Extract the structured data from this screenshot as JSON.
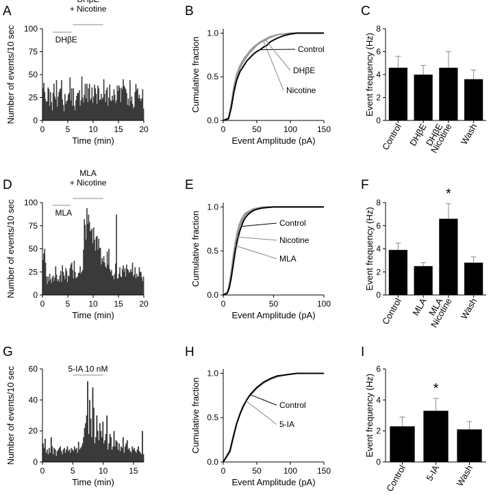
{
  "colors": {
    "hist_fill": "#3a3a3a",
    "bar_fill": "#000000",
    "curve_dark": "#000000",
    "curve_light": "#999999",
    "axis": "#000000"
  },
  "chart_data": [
    {
      "id": "A",
      "type": "bar",
      "letter": "A",
      "xlabel": "Time (min)",
      "ylabel": "Number of events/10 sec",
      "xlim": [
        0,
        20
      ],
      "ylim": [
        0,
        100
      ],
      "xticks": [
        0,
        5,
        10,
        15,
        20
      ],
      "yticks": [
        0,
        25,
        50,
        75,
        100
      ],
      "annotations": [
        {
          "lines": [
            "DHβE"
          ],
          "x_start": 2,
          "x_end": 5.8
        },
        {
          "lines": [
            "DHβE",
            "+ Nicotine"
          ],
          "x_start": 6.0,
          "x_end": 12.0
        }
      ],
      "values": [
        35,
        41,
        31,
        23,
        20,
        21,
        36,
        34,
        16,
        31,
        20,
        11,
        30,
        40,
        26,
        23,
        44,
        15,
        26,
        31,
        34,
        35,
        44,
        23,
        17,
        10,
        29,
        18,
        21,
        22,
        28,
        30,
        47,
        22,
        35,
        16,
        35,
        16,
        11,
        22,
        27,
        30,
        30,
        33,
        16,
        22,
        48,
        25,
        20,
        28,
        40,
        24,
        40,
        20,
        35,
        40,
        22,
        24,
        36,
        19,
        26,
        39,
        35,
        29,
        18,
        38,
        35,
        22,
        23,
        29,
        23,
        25,
        45,
        29,
        20,
        33,
        36,
        16,
        25,
        39,
        22,
        21,
        27,
        22,
        34,
        28,
        19,
        22,
        38,
        32,
        38,
        35,
        20,
        36,
        34,
        45,
        38,
        36,
        34,
        30,
        17,
        24,
        16,
        44,
        21,
        26,
        18,
        13,
        15,
        31,
        40,
        33,
        35,
        24,
        28,
        24,
        21,
        24,
        34,
        13
      ]
    },
    {
      "id": "B",
      "type": "line",
      "letter": "B",
      "xlabel": "Event Amplitude (pA)",
      "ylabel": "Cumulative fraction",
      "xlim": [
        0,
        150
      ],
      "ylim": [
        0,
        1.05
      ],
      "xticks": [
        0,
        50,
        100,
        150
      ],
      "yticks": [
        0,
        0.5,
        1.0
      ],
      "ytick_labels": [
        "0.0",
        "0.5",
        "1.0"
      ],
      "series": [
        {
          "name": "Control",
          "color": "#000000",
          "x": [
            0,
            8,
            12,
            16,
            20,
            25,
            30,
            35,
            40,
            45,
            50,
            55,
            60,
            65,
            70,
            80,
            90,
            100,
            110,
            120,
            130,
            140,
            150
          ],
          "y": [
            0,
            0.02,
            0.15,
            0.33,
            0.46,
            0.56,
            0.62,
            0.68,
            0.72,
            0.76,
            0.79,
            0.81,
            0.84,
            0.86,
            0.9,
            0.94,
            0.97,
            0.99,
            1,
            1,
            1,
            1,
            1
          ]
        },
        {
          "name": "DHβE",
          "color": "#999999",
          "x": [
            0,
            8,
            12,
            16,
            20,
            25,
            30,
            35,
            40,
            45,
            50,
            55,
            60,
            65,
            70,
            80,
            90,
            100,
            110,
            120,
            130,
            140,
            150
          ],
          "y": [
            0,
            0.03,
            0.2,
            0.4,
            0.53,
            0.63,
            0.7,
            0.75,
            0.8,
            0.84,
            0.87,
            0.9,
            0.92,
            0.94,
            0.96,
            0.98,
            0.99,
            1,
            1,
            1,
            1,
            1,
            1
          ]
        },
        {
          "name": "Nicotine",
          "color": "#999999",
          "x": [
            0,
            8,
            12,
            16,
            20,
            25,
            30,
            35,
            40,
            45,
            50,
            55,
            60,
            65,
            70,
            80,
            90,
            100,
            110,
            120,
            130,
            140,
            150
          ],
          "y": [
            0,
            0.03,
            0.18,
            0.36,
            0.5,
            0.6,
            0.67,
            0.73,
            0.78,
            0.82,
            0.86,
            0.89,
            0.91,
            0.93,
            0.95,
            0.98,
            0.99,
            1,
            1,
            1,
            1,
            1,
            1
          ]
        }
      ],
      "labels": [
        {
          "text": "Control",
          "series": "Control",
          "at_x": 55
        },
        {
          "text": "DHβE",
          "series": "DHβE",
          "at_x": 62
        },
        {
          "text": "Nicotine",
          "series": "Nicotine",
          "at_x": 60
        }
      ]
    },
    {
      "id": "C",
      "type": "bar",
      "letter": "C",
      "xlabel": "",
      "ylabel": "Event frequency (Hz)",
      "ylim": [
        0,
        8
      ],
      "yticks": [
        0,
        2,
        4,
        6,
        8
      ],
      "categories": [
        [
          "Control"
        ],
        [
          "DHβE"
        ],
        [
          "DHβE",
          "Nicotine"
        ],
        [
          "Wash"
        ]
      ],
      "values": [
        4.6,
        4.0,
        4.6,
        3.6
      ],
      "errors": [
        1.0,
        0.8,
        1.4,
        0.8
      ],
      "significant": []
    },
    {
      "id": "D",
      "type": "bar",
      "letter": "D",
      "xlabel": "Time (min)",
      "ylabel": "Number of events/10 sec",
      "xlim": [
        0,
        20
      ],
      "ylim": [
        0,
        100
      ],
      "xticks": [
        0,
        5,
        10,
        15,
        20
      ],
      "yticks": [
        0,
        25,
        50,
        75,
        100
      ],
      "annotations": [
        {
          "lines": [
            "MLA"
          ],
          "x_start": 2,
          "x_end": 5.5
        },
        {
          "lines": [
            "MLA",
            "+ Nicotine"
          ],
          "x_start": 6.0,
          "x_end": 12.0
        }
      ],
      "values": [
        38,
        45,
        50,
        35,
        20,
        12,
        20,
        15,
        23,
        17,
        13,
        19,
        21,
        15,
        19,
        31,
        22,
        15,
        17,
        14,
        21,
        26,
        14,
        32,
        25,
        21,
        17,
        29,
        26,
        14,
        21,
        20,
        29,
        33,
        35,
        27,
        18,
        37,
        25,
        18,
        19,
        20,
        24,
        24,
        31,
        23,
        25,
        27,
        49,
        82,
        76,
        60,
        94,
        77,
        87,
        79,
        69,
        70,
        72,
        56,
        73,
        60,
        48,
        63,
        64,
        49,
        61,
        51,
        51,
        33,
        40,
        36,
        42,
        35,
        31,
        29,
        47,
        33,
        50,
        28,
        25,
        27,
        21,
        21,
        17,
        23,
        34,
        87,
        18,
        18,
        23,
        30,
        20,
        19,
        28,
        32,
        25,
        29,
        20,
        33,
        28,
        27,
        24,
        25,
        28,
        25,
        35,
        20,
        22,
        30,
        18,
        23,
        20,
        20,
        30,
        25,
        25,
        19,
        15,
        20
      ]
    },
    {
      "id": "E",
      "type": "line",
      "letter": "E",
      "xlabel": "Event Amplitude (pA)",
      "ylabel": "Cumulative fraction",
      "xlim": [
        0,
        100
      ],
      "ylim": [
        0,
        1.05
      ],
      "xticks": [
        0,
        50,
        100
      ],
      "yticks": [
        0,
        0.5,
        1.0
      ],
      "ytick_labels": [
        "0.0",
        "0.5",
        "1.0"
      ],
      "series": [
        {
          "name": "Control",
          "color": "#000000",
          "x": [
            0,
            4,
            6,
            8,
            10,
            12,
            14,
            16,
            18,
            20,
            22,
            25,
            30,
            35,
            40,
            50,
            60,
            70,
            80,
            90,
            100
          ],
          "y": [
            0,
            0.02,
            0.08,
            0.2,
            0.35,
            0.5,
            0.62,
            0.71,
            0.78,
            0.84,
            0.88,
            0.92,
            0.96,
            0.98,
            0.99,
            1,
            1,
            1,
            1,
            1,
            1
          ]
        },
        {
          "name": "Nicotine",
          "color": "#999999",
          "x": [
            0,
            4,
            6,
            8,
            10,
            12,
            14,
            16,
            18,
            20,
            22,
            25,
            30,
            35,
            40,
            50,
            60,
            70,
            80,
            90,
            100
          ],
          "y": [
            0,
            0.03,
            0.12,
            0.28,
            0.45,
            0.6,
            0.72,
            0.8,
            0.86,
            0.9,
            0.93,
            0.95,
            0.98,
            0.99,
            1,
            1,
            1,
            1,
            1,
            1,
            1
          ]
        },
        {
          "name": "MLA",
          "color": "#999999",
          "x": [
            0,
            4,
            6,
            8,
            10,
            12,
            14,
            16,
            18,
            20,
            22,
            25,
            30,
            35,
            40,
            50,
            60,
            70,
            80,
            90,
            100
          ],
          "y": [
            0,
            0.03,
            0.1,
            0.25,
            0.41,
            0.56,
            0.68,
            0.77,
            0.83,
            0.88,
            0.91,
            0.94,
            0.97,
            0.99,
            1,
            1,
            1,
            1,
            1,
            1,
            1
          ]
        }
      ],
      "labels": [
        {
          "text": "Control",
          "series": "Control",
          "at_x": 18
        },
        {
          "text": "Nicotine",
          "series": "Nicotine",
          "at_x": 13
        },
        {
          "text": "MLA",
          "series": "MLA",
          "at_x": 12
        }
      ]
    },
    {
      "id": "F",
      "type": "bar",
      "letter": "F",
      "xlabel": "",
      "ylabel": "Event frequency (Hz)",
      "ylim": [
        0,
        8
      ],
      "yticks": [
        0,
        2,
        4,
        6,
        8
      ],
      "categories": [
        [
          "Control"
        ],
        [
          "MLA"
        ],
        [
          "MLA",
          "Nicotine"
        ],
        [
          "Wash"
        ]
      ],
      "values": [
        3.9,
        2.5,
        6.6,
        2.8
      ],
      "errors": [
        0.6,
        0.3,
        1.3,
        0.5
      ],
      "significant": [
        2
      ]
    },
    {
      "id": "G",
      "type": "bar",
      "letter": "G",
      "xlabel": "Time (min)",
      "ylabel": "Number of events/10 sec",
      "xlim": [
        0,
        16.7
      ],
      "ylim": [
        0,
        60
      ],
      "xticks": [
        0,
        5,
        10,
        15
      ],
      "yticks": [
        0,
        20,
        40,
        60
      ],
      "annotations": [
        {
          "lines": [
            "5-IA 10 nM"
          ],
          "x_start": 5.0,
          "x_end": 10.0
        }
      ],
      "values": [
        12,
        9,
        15,
        6,
        8,
        5,
        9,
        6,
        16,
        10,
        5,
        9,
        8,
        4,
        7,
        8,
        9,
        10,
        7,
        5,
        8,
        9,
        6,
        8,
        10,
        7,
        8,
        6,
        9,
        8,
        7,
        10,
        8,
        9,
        6,
        13,
        8,
        9,
        10,
        12,
        16,
        22,
        25,
        30,
        52,
        18,
        40,
        28,
        16,
        48,
        35,
        12,
        16,
        30,
        20,
        14,
        25,
        20,
        16,
        26,
        12,
        14,
        18,
        30,
        8,
        12,
        18,
        16,
        8,
        10,
        20,
        10,
        14,
        13,
        8,
        12,
        7,
        10,
        9,
        16,
        6,
        10,
        12,
        14,
        8,
        9,
        7,
        6,
        10,
        8,
        9,
        7,
        6,
        8,
        10,
        7,
        6,
        5,
        20,
        5
      ]
    },
    {
      "id": "H",
      "type": "line",
      "letter": "H",
      "xlabel": "Event Amplitude (pA)",
      "ylabel": "Cumulative fraction",
      "xlim": [
        0,
        150
      ],
      "ylim": [
        0,
        1.05
      ],
      "xticks": [
        0,
        50,
        100,
        150
      ],
      "yticks": [
        0,
        0.5,
        1.0
      ],
      "ytick_labels": [
        "0.0",
        "0.5",
        "1.0"
      ],
      "series": [
        {
          "name": "Control",
          "color": "#000000",
          "x": [
            0,
            10,
            15,
            20,
            25,
            30,
            35,
            40,
            45,
            50,
            55,
            60,
            70,
            80,
            90,
            100,
            110,
            120,
            130,
            140,
            150
          ],
          "y": [
            0,
            0.12,
            0.28,
            0.43,
            0.54,
            0.63,
            0.7,
            0.76,
            0.8,
            0.84,
            0.87,
            0.9,
            0.94,
            0.97,
            0.98,
            0.99,
            1,
            1,
            1,
            1,
            1
          ]
        },
        {
          "name": "5-IA",
          "color": "#999999",
          "x": [
            0,
            10,
            15,
            20,
            25,
            30,
            35,
            40,
            45,
            50,
            55,
            60,
            70,
            80,
            90,
            100,
            110,
            120,
            130,
            140,
            150
          ],
          "y": [
            0,
            0.14,
            0.3,
            0.44,
            0.55,
            0.64,
            0.7,
            0.75,
            0.79,
            0.83,
            0.86,
            0.89,
            0.93,
            0.96,
            0.98,
            0.99,
            1,
            1,
            1,
            1,
            1
          ]
        }
      ],
      "labels": [
        {
          "text": "Control",
          "series": "Control",
          "at_x": 40
        },
        {
          "text": "5-IA",
          "series": "5-IA",
          "at_x": 34
        }
      ]
    },
    {
      "id": "I",
      "type": "bar",
      "letter": "I",
      "xlabel": "",
      "ylabel": "Event frequency (Hz)",
      "ylim": [
        0,
        6
      ],
      "yticks": [
        0,
        2,
        4,
        6
      ],
      "categories": [
        [
          "Control"
        ],
        [
          "5-IA"
        ],
        [
          "Wash"
        ]
      ],
      "values": [
        2.3,
        3.3,
        2.1
      ],
      "errors": [
        0.6,
        0.8,
        0.5
      ],
      "significant": [
        1
      ]
    }
  ]
}
